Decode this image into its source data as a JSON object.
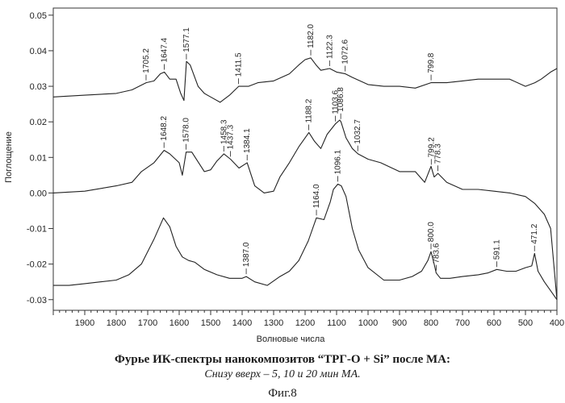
{
  "chart_data": {
    "type": "line",
    "xlabel": "Волновые числа",
    "ylabel": "Поглощение",
    "xlim": [
      2000,
      400
    ],
    "ylim": [
      -0.033,
      0.052
    ],
    "x_ticks": [
      1900,
      1800,
      1700,
      1600,
      1500,
      1400,
      1300,
      1200,
      1100,
      1000,
      900,
      800,
      700,
      600,
      500,
      400
    ],
    "y_ticks": [
      {
        "value": 0.05,
        "label": "0.05"
      },
      {
        "value": 0.04,
        "label": "0.04"
      },
      {
        "value": 0.03,
        "label": "0.03"
      },
      {
        "value": 0.02,
        "label": "0.02"
      },
      {
        "value": 0.01,
        "label": "0.01"
      },
      {
        "value": 0.0,
        "label": "0.00"
      },
      {
        "value": -0.01,
        "label": "-0.01"
      },
      {
        "value": -0.02,
        "label": "-0.02"
      },
      {
        "value": -0.03,
        "label": "-0.03"
      }
    ],
    "series": [
      {
        "x": [
          2000,
          1900,
          1800,
          1750,
          1705,
          1680,
          1660,
          1647,
          1630,
          1610,
          1595,
          1585,
          1577,
          1565,
          1540,
          1520,
          1500,
          1470,
          1440,
          1411,
          1380,
          1350,
          1300,
          1250,
          1220,
          1200,
          1182,
          1165,
          1150,
          1122,
          1100,
          1072,
          1050,
          1000,
          950,
          900,
          850,
          800,
          750,
          700,
          650,
          600,
          550,
          500,
          470,
          450,
          420,
          400
        ],
        "values": [
          0.027,
          0.0275,
          0.028,
          0.029,
          0.031,
          0.0315,
          0.0335,
          0.034,
          0.032,
          0.032,
          0.028,
          0.026,
          0.037,
          0.036,
          0.03,
          0.028,
          0.027,
          0.0255,
          0.0275,
          0.03,
          0.03,
          0.031,
          0.0315,
          0.0335,
          0.036,
          0.0375,
          0.038,
          0.036,
          0.0345,
          0.035,
          0.034,
          0.0335,
          0.0325,
          0.0305,
          0.03,
          0.03,
          0.0295,
          0.031,
          0.031,
          0.0315,
          0.032,
          0.032,
          0.032,
          0.03,
          0.031,
          0.032,
          0.034,
          0.035
        ],
        "peak_labels": [
          {
            "x": 1705.2,
            "label": "1705.2"
          },
          {
            "x": 1647.4,
            "label": "1647.4"
          },
          {
            "x": 1577.1,
            "label": "1577.1"
          },
          {
            "x": 1411.5,
            "label": "1411.5"
          },
          {
            "x": 1182.0,
            "label": "1182.0"
          },
          {
            "x": 1122.3,
            "label": "1122.3"
          },
          {
            "x": 1072.6,
            "label": "1072.6"
          },
          {
            "x": 799.8,
            "label": "799.8"
          }
        ]
      },
      {
        "x": [
          2000,
          1900,
          1800,
          1750,
          1720,
          1680,
          1648,
          1630,
          1600,
          1590,
          1578,
          1560,
          1520,
          1500,
          1480,
          1458,
          1437,
          1410,
          1384,
          1360,
          1330,
          1300,
          1280,
          1250,
          1220,
          1188,
          1170,
          1150,
          1130,
          1103,
          1090,
          1086,
          1070,
          1050,
          1032,
          1000,
          960,
          900,
          850,
          820,
          800,
          790,
          778,
          750,
          700,
          650,
          600,
          550,
          500,
          470,
          440,
          420,
          400
        ],
        "values": [
          0.0,
          0.0005,
          0.002,
          0.003,
          0.006,
          0.0085,
          0.012,
          0.011,
          0.0085,
          0.005,
          0.0115,
          0.0115,
          0.006,
          0.0065,
          0.009,
          0.011,
          0.0095,
          0.007,
          0.0085,
          0.002,
          0.0,
          0.0005,
          0.0045,
          0.0085,
          0.013,
          0.017,
          0.0145,
          0.0125,
          0.0165,
          0.0195,
          0.0205,
          0.02,
          0.0155,
          0.0125,
          0.011,
          0.0095,
          0.0085,
          0.006,
          0.006,
          0.003,
          0.0075,
          0.0045,
          0.0055,
          0.003,
          0.001,
          0.001,
          0.0005,
          0.0,
          -0.001,
          -0.003,
          -0.006,
          -0.01,
          -0.03
        ],
        "peak_labels": [
          {
            "x": 1648.2,
            "label": "1648.2"
          },
          {
            "x": 1578.0,
            "label": "1578.0"
          },
          {
            "x": 1458.3,
            "label": "1458.3"
          },
          {
            "x": 1437.3,
            "label": "1437.3"
          },
          {
            "x": 1384.1,
            "label": "1384.1"
          },
          {
            "x": 1188.2,
            "label": "1188.2"
          },
          {
            "x": 1103.6,
            "label": "1103.6"
          },
          {
            "x": 1086.8,
            "label": "1086.8"
          },
          {
            "x": 1032.7,
            "label": "1032.7"
          },
          {
            "x": 799.2,
            "label": "799.2"
          },
          {
            "x": 778.3,
            "label": "778.3"
          }
        ]
      },
      {
        "x": [
          2000,
          1950,
          1900,
          1850,
          1800,
          1760,
          1720,
          1680,
          1650,
          1630,
          1610,
          1590,
          1570,
          1550,
          1520,
          1480,
          1440,
          1400,
          1387,
          1360,
          1320,
          1280,
          1250,
          1220,
          1190,
          1164,
          1140,
          1120,
          1110,
          1096,
          1085,
          1070,
          1050,
          1030,
          1000,
          950,
          900,
          860,
          830,
          810,
          800,
          790,
          783.6,
          770,
          740,
          700,
          650,
          620,
          591,
          560,
          530,
          500,
          480,
          471,
          460,
          440,
          420,
          400
        ],
        "values": [
          -0.026,
          -0.026,
          -0.0255,
          -0.025,
          -0.0245,
          -0.023,
          -0.02,
          -0.013,
          -0.007,
          -0.0095,
          -0.015,
          -0.018,
          -0.019,
          -0.0195,
          -0.0215,
          -0.023,
          -0.024,
          -0.024,
          -0.0235,
          -0.025,
          -0.026,
          -0.0235,
          -0.022,
          -0.019,
          -0.0135,
          -0.007,
          -0.0075,
          -0.0025,
          0.001,
          0.0025,
          0.002,
          -0.001,
          -0.01,
          -0.016,
          -0.021,
          -0.0245,
          -0.0245,
          -0.0235,
          -0.022,
          -0.019,
          -0.0165,
          -0.02,
          -0.0225,
          -0.024,
          -0.024,
          -0.0235,
          -0.023,
          -0.0225,
          -0.0215,
          -0.022,
          -0.022,
          -0.021,
          -0.0205,
          -0.017,
          -0.022,
          -0.025,
          -0.0275,
          -0.03
        ],
        "peak_labels": [
          {
            "x": 1387.0,
            "label": "1387.0"
          },
          {
            "x": 1164.0,
            "label": "1164.0"
          },
          {
            "x": 1096.1,
            "label": "1096.1"
          },
          {
            "x": 800.0,
            "label": "800.0"
          },
          {
            "x": 783.6,
            "label": "783.6"
          },
          {
            "x": 591.1,
            "label": "591.1"
          },
          {
            "x": 471.2,
            "label": "471.2"
          }
        ]
      }
    ]
  },
  "caption": {
    "title": "Фурье ИК-спектры нанокомпозитов “ТРГ-О + Si” после МА:",
    "subtitle": "Снизу вверх – 5, 10 и 20 мин МА.",
    "figure": "Фиг.8"
  }
}
